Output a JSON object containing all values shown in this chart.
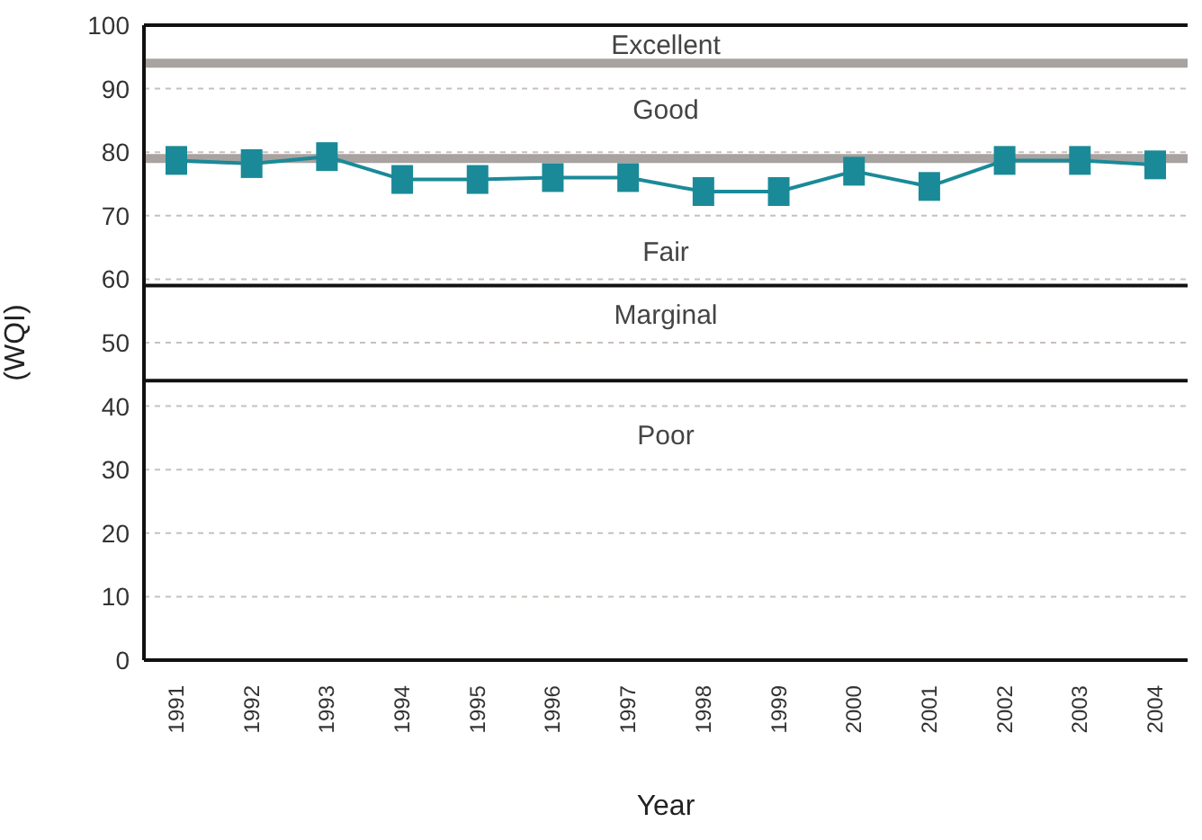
{
  "chart_data": {
    "type": "line",
    "xlabel": "Year",
    "ylabel": "(WQI)",
    "categories": [
      "1991",
      "1992",
      "1993",
      "1994",
      "1995",
      "1996",
      "1997",
      "1998",
      "1999",
      "2000",
      "2001",
      "2002",
      "2003",
      "2004"
    ],
    "series": [
      {
        "color": "#1a8a98",
        "values": [
          78.7,
          78.2,
          79.3,
          75.7,
          75.7,
          76,
          76,
          73.8,
          73.8,
          77,
          74.6,
          78.7,
          78.7,
          78
        ]
      }
    ],
    "marker": "square",
    "line_style": "solid",
    "ylim": [
      0,
      100
    ],
    "yticks": [
      0,
      10,
      20,
      30,
      40,
      50,
      60,
      70,
      80,
      90,
      100
    ],
    "grid": "y",
    "legend": false,
    "ref_lines": [
      {
        "axis": "y",
        "value": 100,
        "color": "#111111"
      },
      {
        "axis": "y",
        "value": 94,
        "color": "#a8a2a0"
      },
      {
        "axis": "y",
        "value": 79,
        "color": "#a8a2a0"
      },
      {
        "axis": "y",
        "value": 59,
        "color": "#111111"
      },
      {
        "axis": "y",
        "value": 44,
        "color": "#111111"
      }
    ],
    "annotations": [
      "Excellent",
      "Good",
      "Fair",
      "Marginal",
      "Poor"
    ]
  }
}
